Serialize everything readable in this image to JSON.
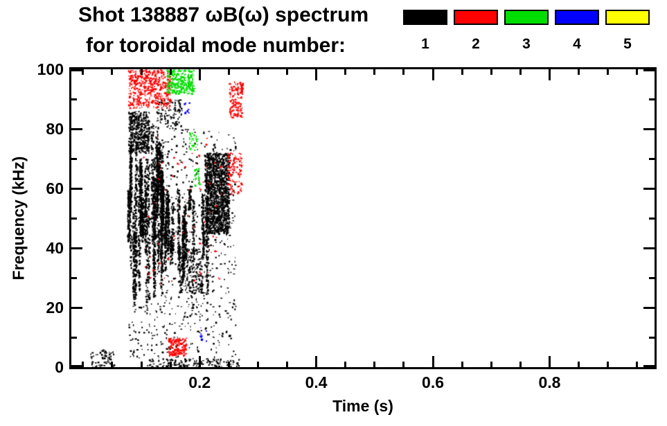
{
  "titles": {
    "line1": "Shot 138887 ωB(ω) spectrum",
    "line2": "for toroidal mode number:"
  },
  "legend": {
    "modes": [
      {
        "label": "1",
        "color": "#000000"
      },
      {
        "label": "2",
        "color": "#ff0000"
      },
      {
        "label": "3",
        "color": "#00dd00"
      },
      {
        "label": "4",
        "color": "#0000ff"
      },
      {
        "label": "5",
        "color": "#ffff00"
      }
    ]
  },
  "chart_data": {
    "type": "scatter",
    "title": "Shot 138887 ωB(ω) spectrum for toroidal mode number: 1 2 3 4 5",
    "xlabel": "Time (s)",
    "ylabel": "Frequency (kHz)",
    "xlim": [
      -0.02,
      0.98
    ],
    "ylim": [
      0,
      100
    ],
    "x_major_ticks": [
      0.2,
      0.4,
      0.6,
      0.8
    ],
    "x_tick_labels": [
      "0.2",
      "0.4",
      "0.6",
      "0.8"
    ],
    "x_minor_ticks": [
      0.0,
      0.05,
      0.1,
      0.15,
      0.25,
      0.3,
      0.35,
      0.45,
      0.5,
      0.55,
      0.65,
      0.7,
      0.75,
      0.85,
      0.9,
      0.95
    ],
    "y_major_ticks": [
      0,
      20,
      40,
      60,
      80,
      100
    ],
    "y_tick_labels": [
      "0",
      "20",
      "40",
      "60",
      "80",
      "100"
    ],
    "y_minor_ticks": [
      10,
      30,
      50,
      70,
      90
    ],
    "grid": false,
    "legend_position": "top-right",
    "clusters": [
      {
        "mode": 1,
        "color": "#000000",
        "type": "vstreaks",
        "t": [
          0.077,
          0.137
        ],
        "f": [
          20,
          88
        ],
        "streaks": 26,
        "pts": 110,
        "flen": [
          12,
          55
        ]
      },
      {
        "mode": 1,
        "color": "#000000",
        "type": "vstreaks",
        "t": [
          0.137,
          0.214
        ],
        "f": [
          24,
          68
        ],
        "streaks": 20,
        "pts": 60,
        "flen": [
          6,
          28
        ]
      },
      {
        "mode": 1,
        "color": "#000000",
        "type": "speckle",
        "t": [
          0.012,
          0.054
        ],
        "f": [
          0,
          6
        ],
        "n": 80
      },
      {
        "mode": 1,
        "color": "#000000",
        "type": "speckle",
        "t": [
          0.077,
          0.113
        ],
        "f": [
          72,
          86
        ],
        "n": 450
      },
      {
        "mode": 1,
        "color": "#000000",
        "type": "speckle",
        "t": [
          0.125,
          0.168
        ],
        "f": [
          80,
          90
        ],
        "n": 120
      },
      {
        "mode": 1,
        "color": "#000000",
        "type": "speckle",
        "t": [
          0.208,
          0.25
        ],
        "f": [
          45,
          72
        ],
        "n": 1500
      },
      {
        "mode": 1,
        "color": "#000000",
        "type": "speckle",
        "t": [
          0.139,
          0.261
        ],
        "f": [
          20,
          80
        ],
        "n": 400
      },
      {
        "mode": 1,
        "color": "#000000",
        "type": "speckle",
        "t": [
          0.077,
          0.261
        ],
        "f": [
          3,
          22
        ],
        "n": 200
      },
      {
        "mode": 1,
        "color": "#000000",
        "type": "speckle",
        "t": [
          0.107,
          0.267
        ],
        "f": [
          0,
          3
        ],
        "n": 150
      },
      {
        "mode": 1,
        "color": "#000000",
        "type": "speckle",
        "t": [
          0.164,
          0.204
        ],
        "f": [
          25,
          40
        ],
        "n": 260
      },
      {
        "mode": 2,
        "color": "#ff0000",
        "type": "speckle",
        "t": [
          0.077,
          0.15
        ],
        "f": [
          87,
          100
        ],
        "n": 520
      },
      {
        "mode": 2,
        "color": "#ff0000",
        "type": "speckle",
        "t": [
          0.25,
          0.273
        ],
        "f": [
          84,
          96
        ],
        "n": 150
      },
      {
        "mode": 2,
        "color": "#ff0000",
        "type": "speckle",
        "t": [
          0.247,
          0.271
        ],
        "f": [
          58,
          72
        ],
        "n": 110
      },
      {
        "mode": 2,
        "color": "#ff0000",
        "type": "speckle",
        "t": [
          0.146,
          0.176
        ],
        "f": [
          4,
          10
        ],
        "n": 170
      },
      {
        "mode": 2,
        "color": "#ff0000",
        "type": "speckle",
        "t": [
          0.1,
          0.238
        ],
        "f": [
          28,
          78
        ],
        "n": 70
      },
      {
        "mode": 3,
        "color": "#00dd00",
        "type": "speckle",
        "t": [
          0.143,
          0.19
        ],
        "f": [
          92,
          100
        ],
        "n": 300
      },
      {
        "mode": 3,
        "color": "#00dd00",
        "type": "speckle",
        "t": [
          0.181,
          0.196
        ],
        "f": [
          73,
          79
        ],
        "n": 35
      },
      {
        "mode": 3,
        "color": "#00dd00",
        "type": "speckle",
        "t": [
          0.188,
          0.2
        ],
        "f": [
          61,
          67
        ],
        "n": 25
      },
      {
        "mode": 4,
        "color": "#0000ff",
        "type": "speckle",
        "t": [
          0.169,
          0.181
        ],
        "f": [
          85,
          89
        ],
        "n": 10
      },
      {
        "mode": 4,
        "color": "#0000ff",
        "type": "speckle",
        "t": [
          0.2,
          0.214
        ],
        "f": [
          9,
          14
        ],
        "n": 12
      }
    ]
  }
}
